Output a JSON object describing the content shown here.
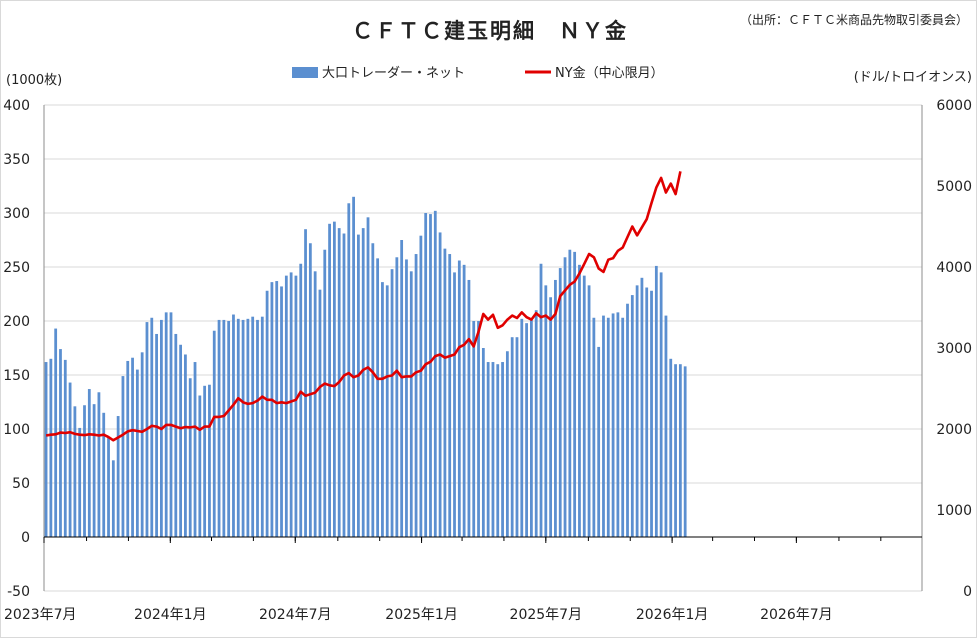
{
  "chart_data": {
    "type": "bar+line",
    "title": "ＣＦＴＣ建玉明細　ＮＹ金",
    "source_note": "（出所：ＣＦＴＣ米商品先物取引委員会）",
    "left_axis_unit": "(1000枚)",
    "right_axis_unit": "(ドル/トロイオンス)",
    "left_axis": {
      "min": -50,
      "max": 400,
      "ticks": [
        "-50",
        "0",
        "50",
        "100",
        "150",
        "200",
        "250",
        "300",
        "350",
        "400"
      ]
    },
    "right_axis": {
      "min": 0,
      "max": 6000,
      "ticks": [
        "0",
        "1000",
        "2000",
        "3000",
        "4000",
        "5000",
        "6000"
      ]
    },
    "x_axis": {
      "range": [
        "2023-07-01",
        "2026-12-31"
      ],
      "tick_labels": [
        "2023年7月",
        "2024年1月",
        "2024年7月",
        "2025年1月",
        "2025年7月",
        "2026年1月",
        "2026年7月"
      ]
    },
    "legend": {
      "placement": "top-center"
    },
    "grid": true,
    "series": [
      {
        "name": "大口トレーダー・ネット",
        "type": "bar",
        "axis": "left",
        "color": "#5b8fd0",
        "start_date": "2023-07-04",
        "interval_days": 7,
        "values": [
          162,
          165,
          193,
          174,
          164,
          143,
          121,
          101,
          122,
          137,
          123,
          134,
          115,
          92,
          71,
          112,
          149,
          163,
          166,
          155,
          171,
          199,
          203,
          188,
          201,
          208,
          208,
          188,
          178,
          169,
          147,
          162,
          131,
          140,
          141,
          191,
          201,
          201,
          200,
          206,
          202,
          201,
          202,
          204,
          201,
          204,
          228,
          236,
          237,
          232,
          242,
          245,
          242,
          253,
          285,
          272,
          246,
          229,
          266,
          290,
          292,
          286,
          281,
          309,
          315,
          280,
          286,
          296,
          272,
          258,
          236,
          233,
          248,
          259,
          275,
          257,
          246,
          262,
          279,
          300,
          299,
          302,
          282,
          267,
          262,
          245,
          256,
          252,
          238,
          200,
          200,
          175,
          162,
          162,
          160,
          162,
          172,
          185,
          185,
          202,
          198,
          201,
          210,
          253,
          233,
          222,
          238,
          249,
          259,
          266,
          264,
          252,
          242,
          233,
          203,
          176,
          205,
          203,
          207,
          208,
          203,
          216,
          224,
          233,
          240,
          231,
          228,
          251,
          245,
          205,
          165,
          160,
          160,
          158
        ]
      },
      {
        "name": "NY金（中心限月）",
        "type": "line",
        "axis": "right",
        "color": "#e00000",
        "start_date": "2023-07-04",
        "interval_days": 7,
        "values": [
          1920,
          1930,
          1935,
          1955,
          1950,
          1960,
          1940,
          1930,
          1925,
          1935,
          1930,
          1920,
          1930,
          1900,
          1860,
          1895,
          1930,
          1970,
          1985,
          1975,
          1965,
          2000,
          2040,
          2030,
          2000,
          2050,
          2050,
          2030,
          2010,
          2025,
          2020,
          2030,
          1990,
          2030,
          2030,
          2150,
          2150,
          2160,
          2230,
          2300,
          2380,
          2330,
          2310,
          2320,
          2350,
          2400,
          2360,
          2360,
          2320,
          2330,
          2320,
          2340,
          2360,
          2460,
          2410,
          2430,
          2450,
          2520,
          2560,
          2540,
          2530,
          2580,
          2660,
          2690,
          2640,
          2660,
          2730,
          2760,
          2700,
          2620,
          2620,
          2650,
          2660,
          2720,
          2640,
          2650,
          2650,
          2700,
          2720,
          2800,
          2830,
          2900,
          2920,
          2880,
          2900,
          2920,
          3010,
          3040,
          3110,
          3020,
          3200,
          3420,
          3350,
          3410,
          3250,
          3280,
          3350,
          3400,
          3370,
          3440,
          3380,
          3350,
          3430,
          3380,
          3400,
          3350,
          3420,
          3640,
          3710,
          3780,
          3820,
          3920,
          4040,
          4160,
          4120,
          3980,
          3940,
          4090,
          4110,
          4200,
          4240,
          4370,
          4500,
          4390,
          4490,
          4590,
          4790,
          4980,
          5100,
          4920,
          5030,
          4900,
          5180
        ]
      }
    ]
  }
}
